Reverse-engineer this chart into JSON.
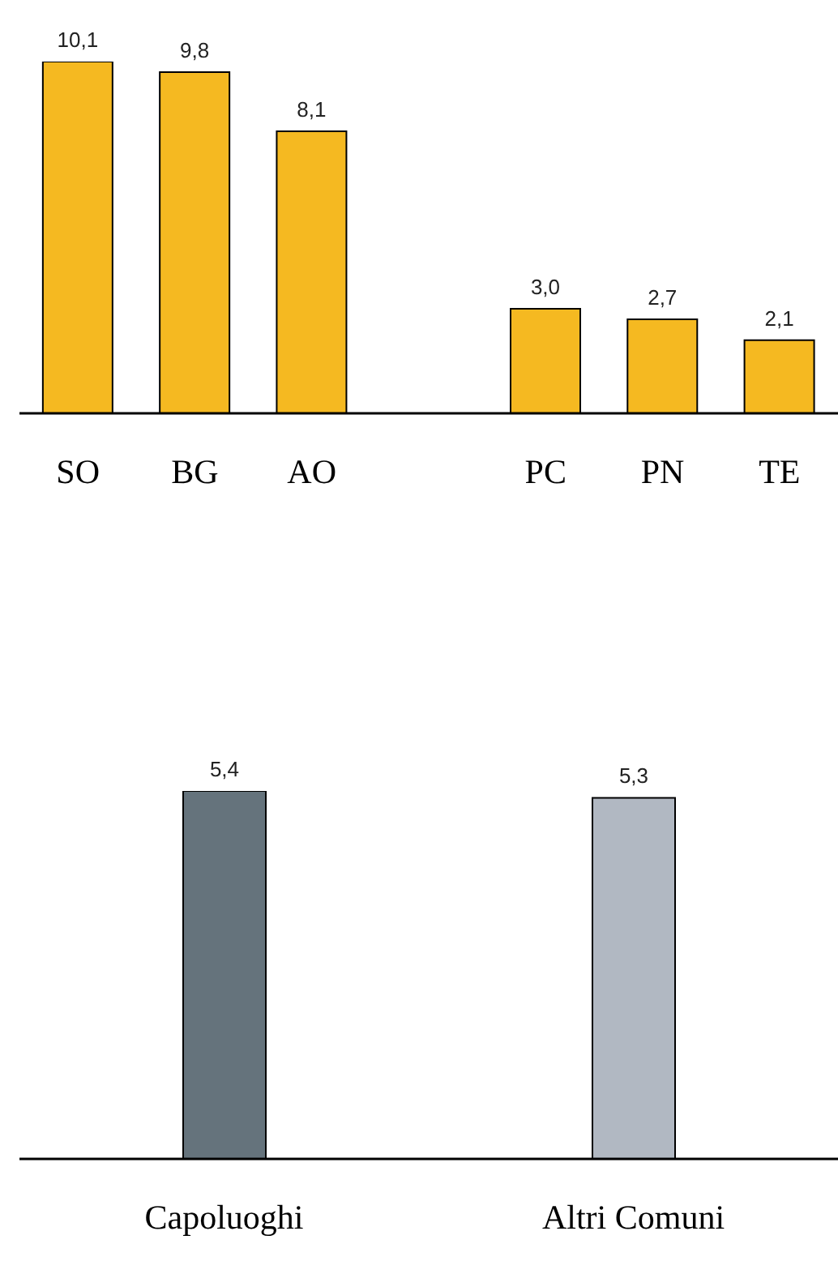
{
  "chart_data": [
    {
      "type": "bar",
      "categories": [
        "SO",
        "BG",
        "AO",
        null,
        "PC",
        "PN",
        "TE"
      ],
      "values": [
        10.1,
        9.8,
        8.1,
        null,
        3.0,
        2.7,
        2.1
      ],
      "color": "#f5b921",
      "value_labels": [
        "10,1",
        "9,8",
        "8,1",
        null,
        "3,0",
        "2,7",
        "2,1"
      ]
    },
    {
      "type": "bar",
      "categories": [
        "Capoluoghi",
        "Altri Comuni"
      ],
      "values": [
        5.4,
        5.3
      ],
      "colors": [
        "#65737c",
        "#b1b8c2"
      ],
      "value_labels": [
        "5,4",
        "5,3"
      ]
    }
  ]
}
